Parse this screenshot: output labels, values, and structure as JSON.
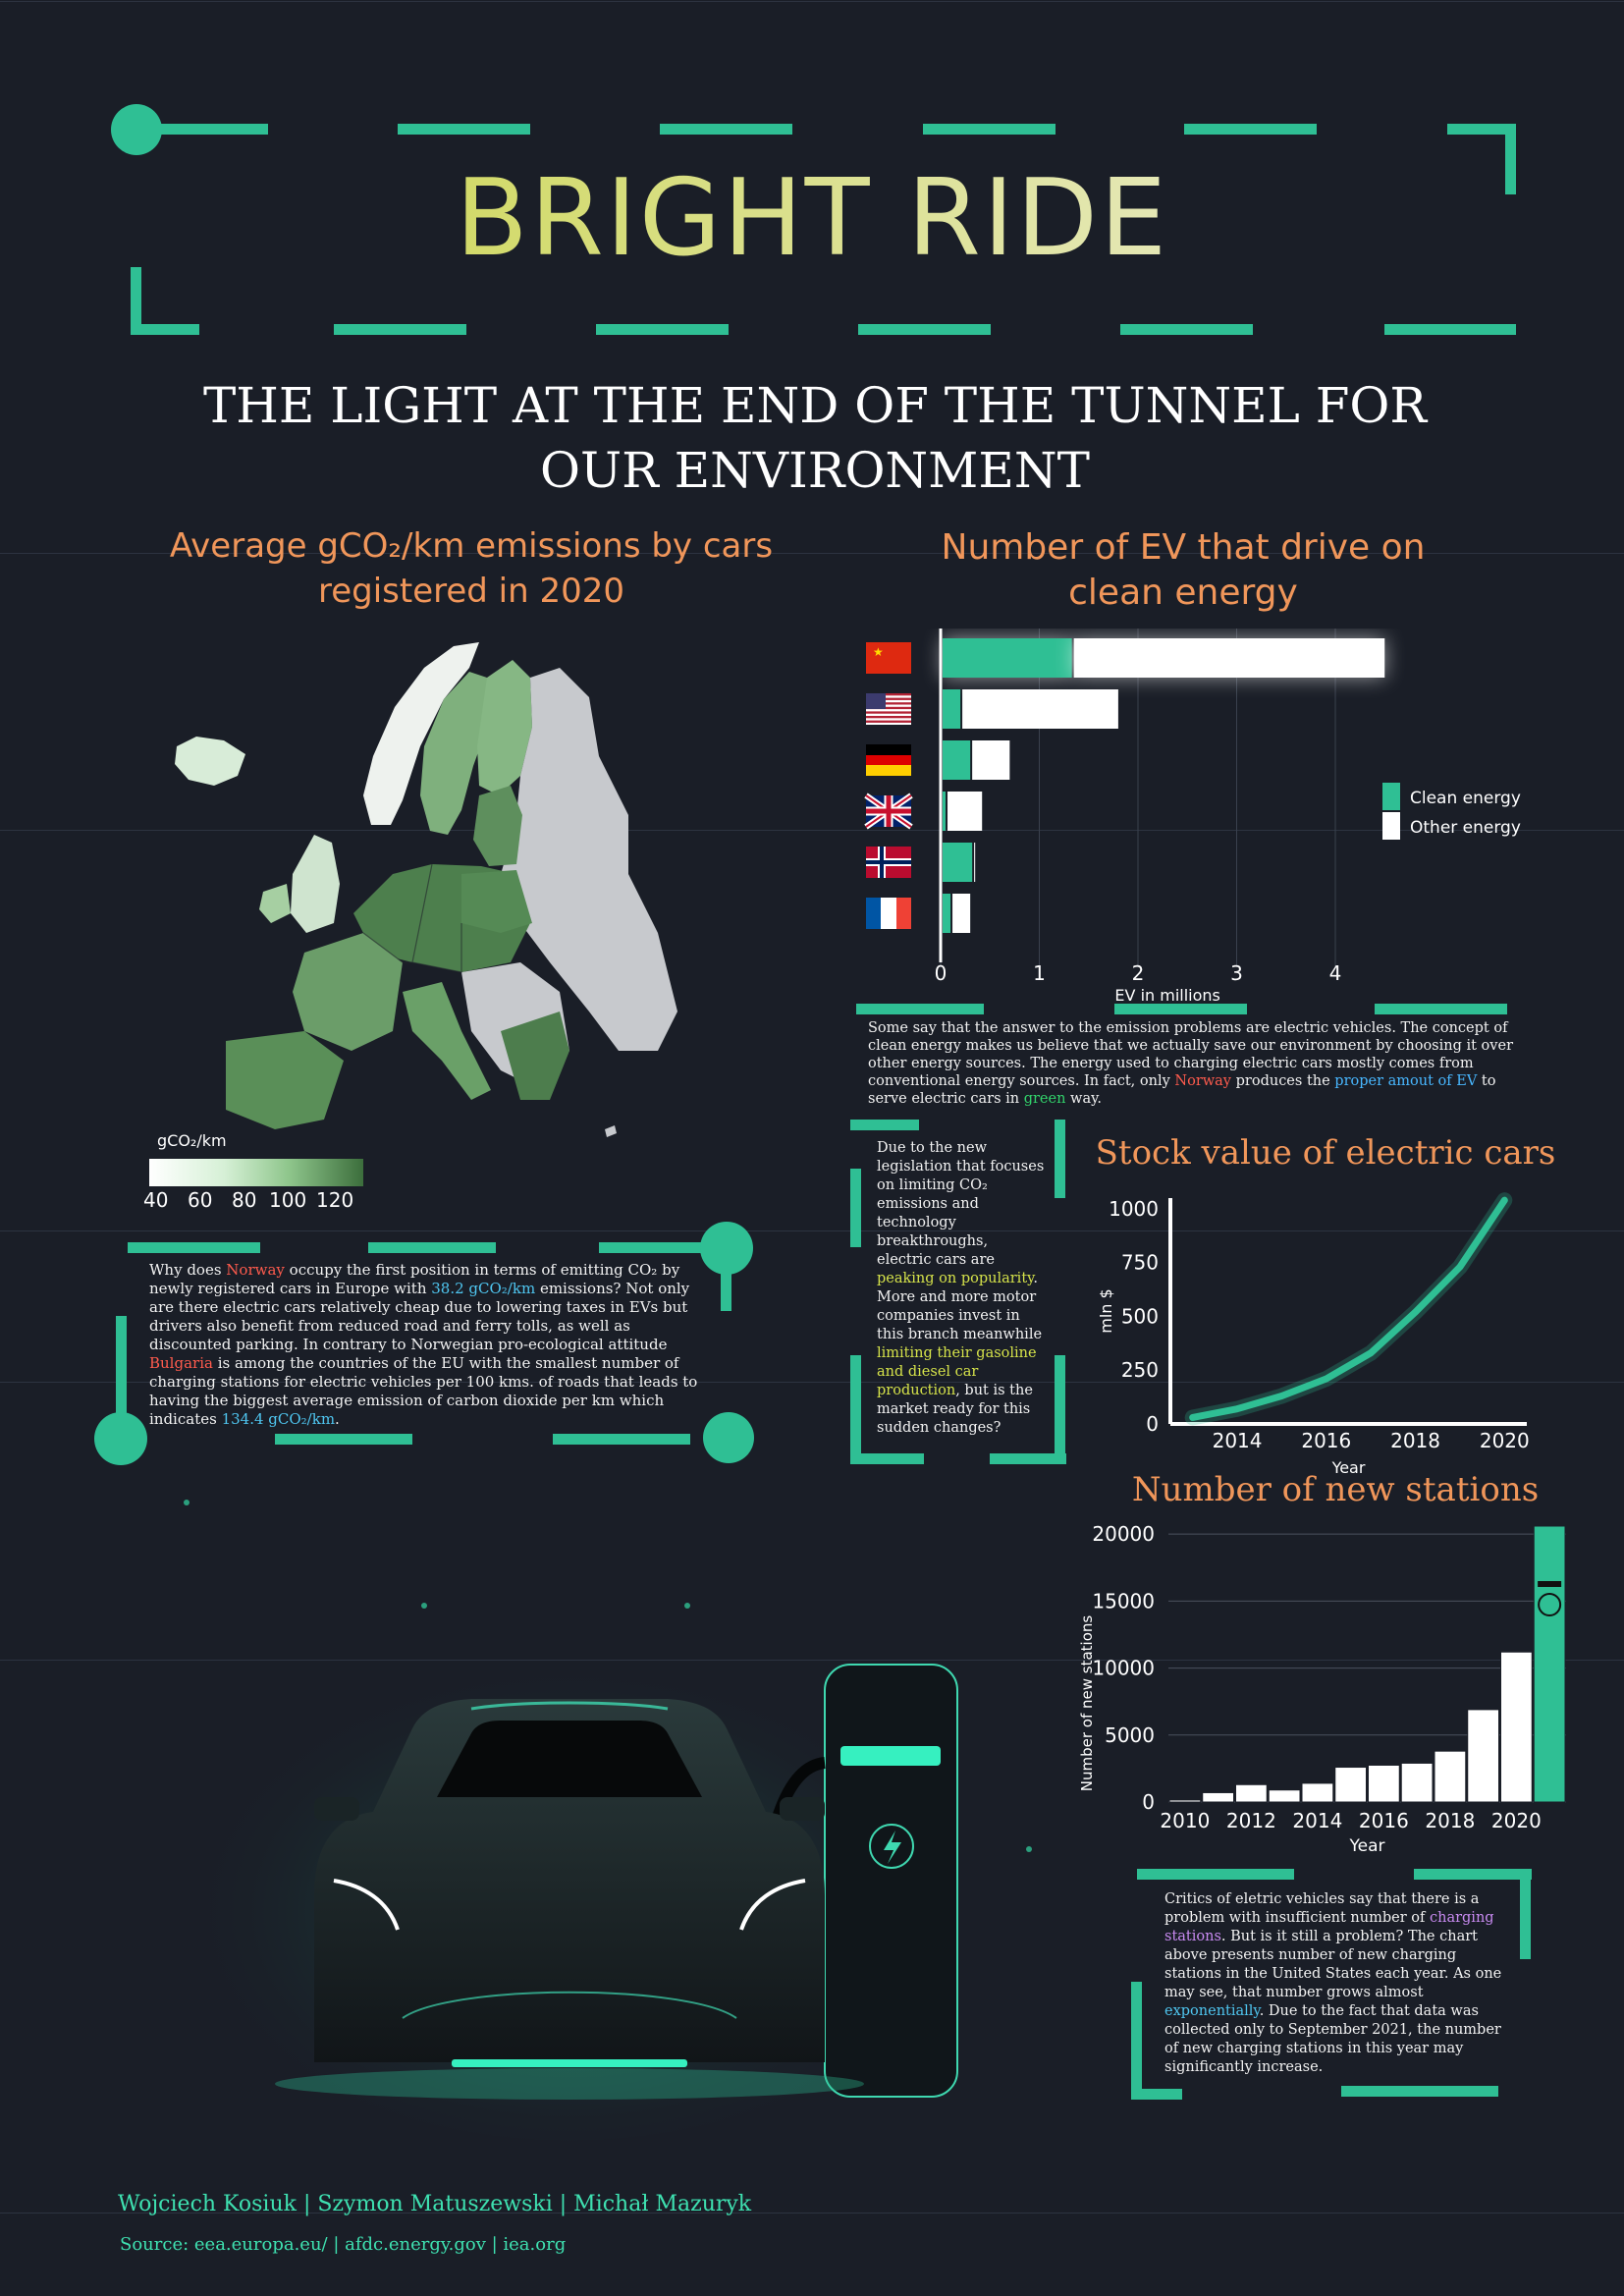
{
  "header": {
    "title": "BRIGHT RIDE",
    "subtitle": "THE LIGHT AT THE END OF THE TUNNEL FOR OUR ENVIRONMENT"
  },
  "map_section": {
    "title": "Average gCO₂/km emissions by cars registered in 2020",
    "legend_title": "gCO₂/km",
    "legend_ticks": [
      "40",
      "60",
      "80",
      "100",
      "120"
    ],
    "paragraph": [
      {
        "t": "Why does "
      },
      {
        "t": "Norway",
        "c": "red"
      },
      {
        "t": " occupy the first position in terms of emitting CO₂ by newly registered cars in Europe with "
      },
      {
        "t": "38.2 gCO₂/km",
        "c": "cyan"
      },
      {
        "t": " emissions? Not only are there electric cars relatively cheap due to lowering taxes in EVs but drivers also benefit from reduced road and ferry tolls, as well as discounted parking. In contrary to Norwegian pro-ecological attitude "
      },
      {
        "t": "Bulgaria",
        "c": "red"
      },
      {
        "t": " is among the countries of the EU with the smallest number of charging stations for electric vehicles per 100 kms. of roads that leads to having the biggest average emission of carbon dioxide per km which indicates "
      },
      {
        "t": "134.4 gCO₂/km",
        "c": "cyan"
      },
      {
        "t": "."
      }
    ]
  },
  "ev_section": {
    "title": "Number of EV that drive on clean energy",
    "legend": [
      "Clean energy",
      "Other energy"
    ],
    "paragraph": [
      {
        "t": "Some say that the answer to the emission problems are electric vehicles. The concept of clean energy makes us believe that we actually save our environment by choosing it over other energy sources. The energy used to charging electric cars mostly comes from conventional energy sources. In fact, only "
      },
      {
        "t": "Norway",
        "c": "red"
      },
      {
        "t": " produces the "
      },
      {
        "t": "proper amout of EV",
        "c": "blue"
      },
      {
        "t": " to serve electric cars in "
      },
      {
        "t": "green",
        "c": "green"
      },
      {
        "t": " way."
      }
    ]
  },
  "legislation_paragraph": [
    {
      "t": "Due to the new legislation that focuses on limiting CO₂ emissions and technology breakthroughs, electric cars are "
    },
    {
      "t": "peaking on popularity",
      "c": "yellow"
    },
    {
      "t": ". More and more motor companies invest in this branch meanwhile "
    },
    {
      "t": "limiting their gasoline and diesel car production",
      "c": "yellow"
    },
    {
      "t": ", but is the market ready for this sudden changes?"
    }
  ],
  "stock_section": {
    "title": "Stock value of electric cars"
  },
  "stations_section": {
    "title": "Number of new stations",
    "paragraph": [
      {
        "t": "Critics of eletric vehicles say that there is a problem with insufficient number of "
      },
      {
        "t": "charging stations",
        "c": "violet"
      },
      {
        "t": ". But is it still a problem? The chart above presents number of new charging stations in the United States each year. As one may see, that number grows almost "
      },
      {
        "t": "exponentially",
        "c": "cyan"
      },
      {
        "t": ". Due to the fact that data was collected only to September 2021, the number of new charging stations in this year may significantly increase."
      }
    ]
  },
  "footer": {
    "authors": "Wojciech Kosiuk | Szymon Matuszewski | Michał Mazuryk",
    "source": "Source: eea.europa.eu/ | afdc.energy.gov | iea.org"
  },
  "colors": {
    "teal": "#2fbf94",
    "orange": "#f0965a",
    "background": "#1a1e27"
  },
  "chart_data": [
    {
      "type": "bar",
      "orientation": "horizontal",
      "stacked": true,
      "title": "Number of EV that drive on clean energy",
      "categories": [
        "China",
        "USA",
        "Germany",
        "United Kingdom",
        "Norway",
        "France"
      ],
      "category_icons": [
        "flag-china",
        "flag-usa",
        "flag-germany",
        "flag-uk",
        "flag-norway",
        "flag-france"
      ],
      "series": [
        {
          "name": "Clean energy",
          "color": "#2fbf94",
          "values": [
            1.33,
            0.2,
            0.3,
            0.05,
            0.32,
            0.1
          ]
        },
        {
          "name": "Other energy",
          "color": "#ffffff",
          "values": [
            3.17,
            1.6,
            0.4,
            0.37,
            0.03,
            0.2
          ]
        }
      ],
      "xlabel": "EV in millions",
      "xticks": [
        "0",
        "1",
        "2",
        "3",
        "4"
      ],
      "xlim": [
        0,
        4.7
      ],
      "legend": "right",
      "grid": true
    },
    {
      "type": "line",
      "title": "Stock value of electric cars",
      "x": [
        2013,
        2014,
        2015,
        2016,
        2017,
        2018,
        2019,
        2020
      ],
      "series": [
        {
          "values": [
            30,
            70,
            130,
            210,
            330,
            520,
            730,
            1040
          ]
        }
      ],
      "xlabel": "Year",
      "ylabel": "mln $",
      "xticks": [
        "2014",
        "2016",
        "2018",
        "2020"
      ],
      "yticks": [
        "0",
        "250",
        "500",
        "750",
        "1000"
      ],
      "xlim": [
        2012.5,
        2020.5
      ],
      "ylim": [
        0,
        1050
      ],
      "grid": false
    },
    {
      "type": "bar",
      "title": "Number of new stations",
      "categories": [
        2010,
        2011,
        2012,
        2013,
        2014,
        2015,
        2016,
        2017,
        2018,
        2019,
        2020,
        2021
      ],
      "values": [
        150,
        700,
        1300,
        900,
        1400,
        2600,
        2750,
        2900,
        3800,
        6900,
        11200,
        20600
      ],
      "highlight": 2021,
      "xlabel": "Year",
      "ylabel": "Number of new stations",
      "xticks": [
        "2010",
        "2012",
        "2014",
        "2016",
        "2018",
        "2020"
      ],
      "yticks": [
        "0",
        "5000",
        "10000",
        "15000",
        "20000"
      ],
      "ylim": [
        0,
        20600
      ],
      "grid": true
    }
  ]
}
